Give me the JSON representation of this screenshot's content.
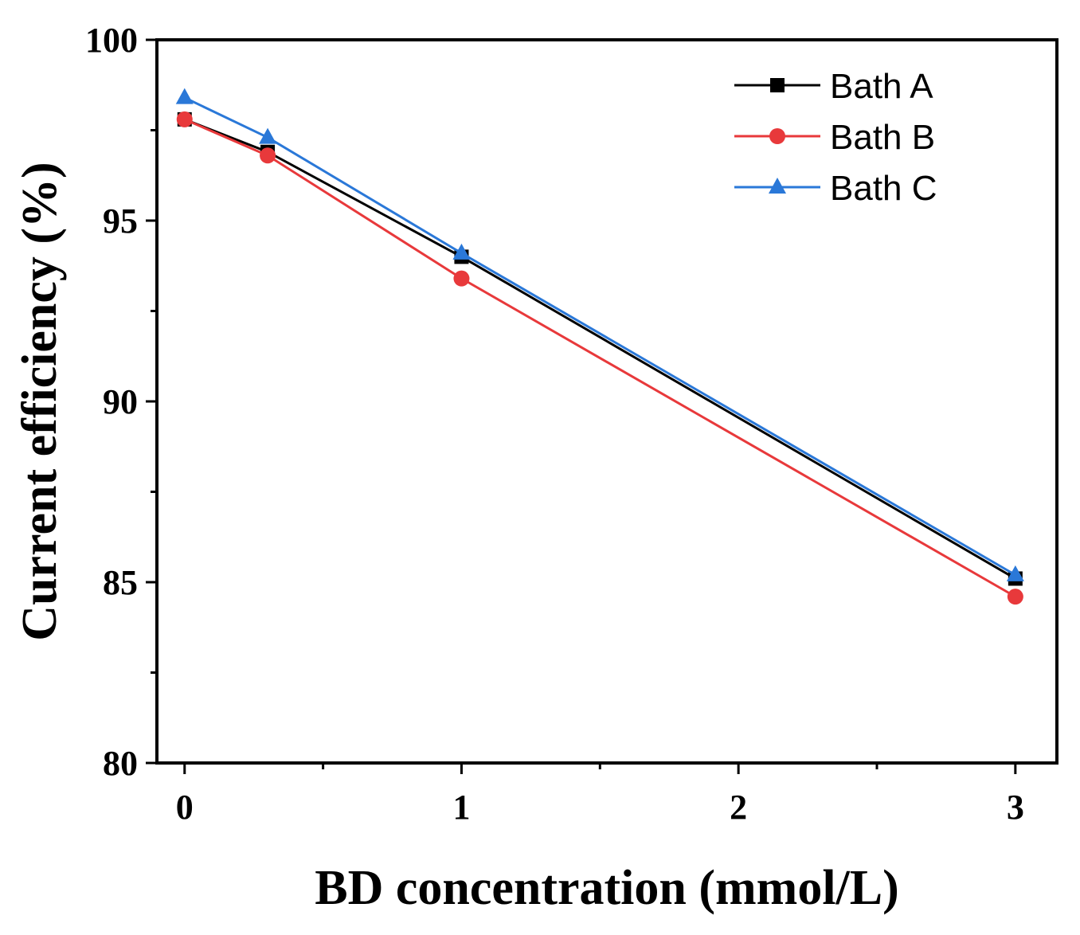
{
  "chart_data": {
    "type": "line",
    "title": "",
    "xlabel": "BD concentration (mmol/L)",
    "ylabel": "Current efficiency (%)",
    "xlim": [
      -0.1,
      3.15
    ],
    "ylim": [
      80,
      100
    ],
    "x": [
      0,
      0.3,
      1,
      3
    ],
    "xticks": [
      "0",
      "1",
      "2",
      "3"
    ],
    "yticks": [
      "80",
      "85",
      "90",
      "95",
      "100"
    ],
    "legend_position": "top-right",
    "grid": false,
    "series": [
      {
        "name": "Bath A",
        "color": "#000000",
        "marker": "square",
        "values": [
          97.8,
          96.9,
          94.0,
          85.1
        ]
      },
      {
        "name": "Bath B",
        "color": "#e8393b",
        "marker": "circle",
        "values": [
          97.8,
          96.8,
          93.4,
          84.6
        ]
      },
      {
        "name": "Bath C",
        "color": "#2a78d8",
        "marker": "triangle",
        "values": [
          98.4,
          97.3,
          94.1,
          85.2
        ]
      }
    ]
  }
}
